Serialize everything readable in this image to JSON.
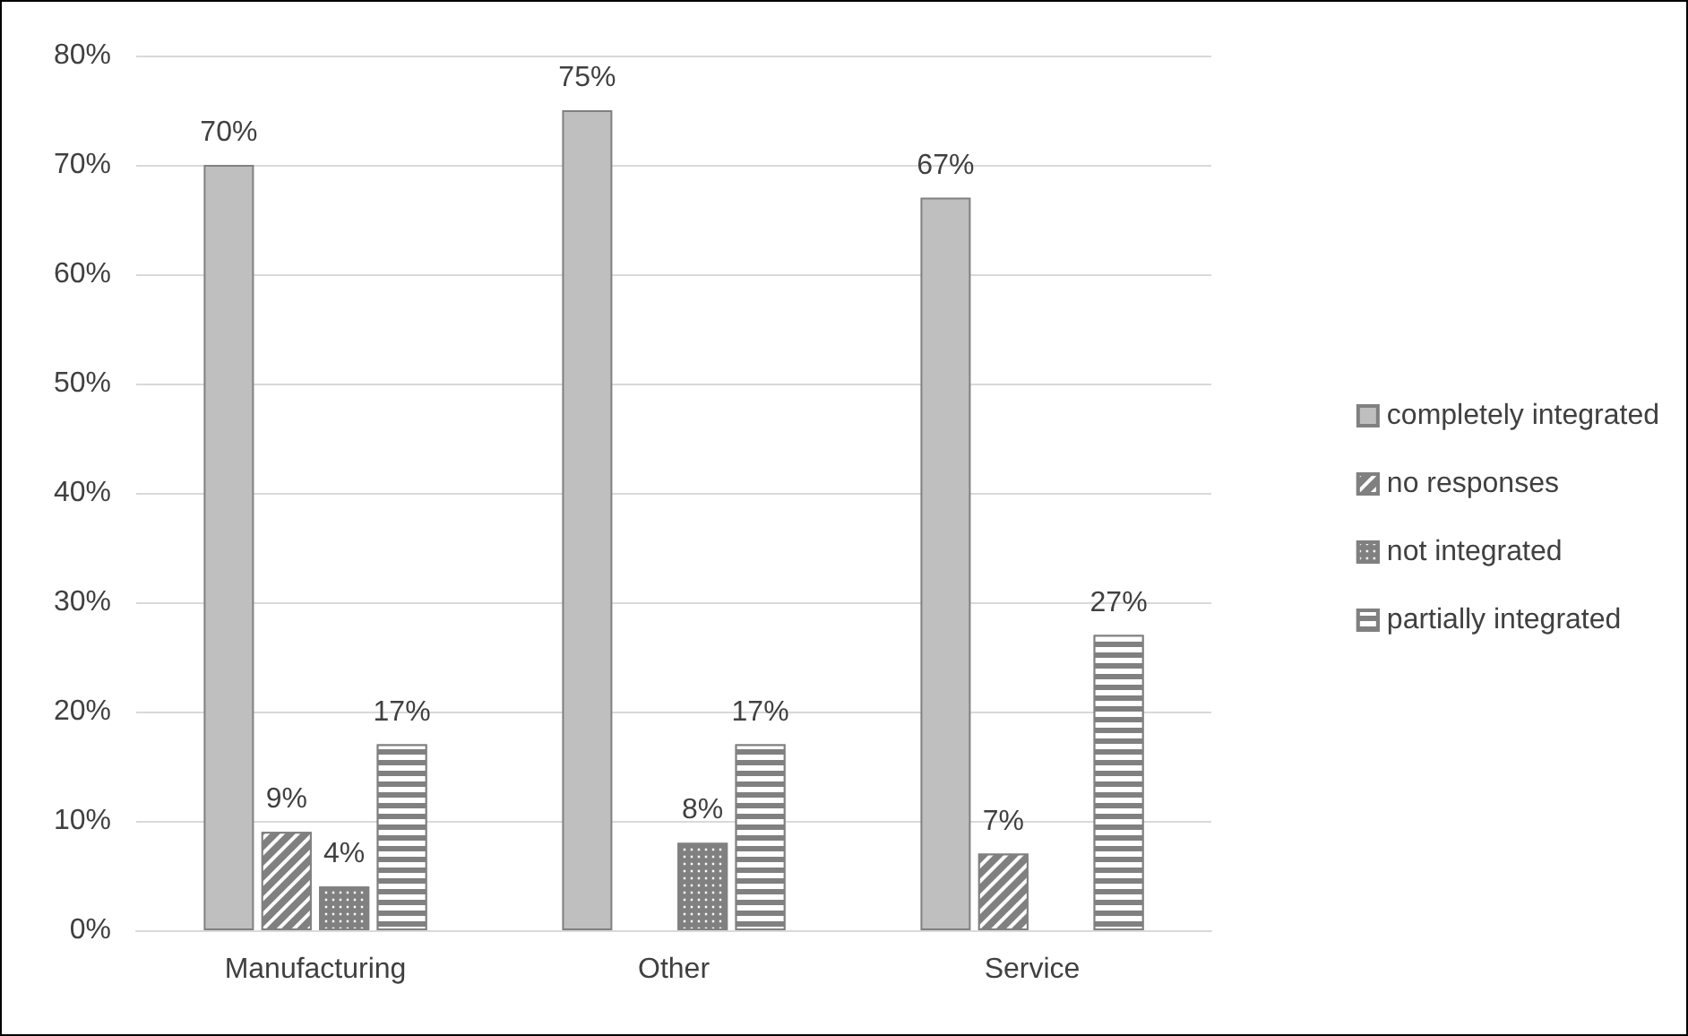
{
  "chart_data": {
    "type": "bar",
    "categories": [
      "Manufacturing",
      "Other",
      "Service"
    ],
    "series": [
      {
        "name": "completely integrated",
        "color": "#bfbfbf",
        "values": [
          70,
          75,
          67
        ],
        "value_labels": [
          "70%",
          "75%",
          "67%"
        ]
      },
      {
        "name": "no responses",
        "color": "#808080",
        "values": [
          9,
          null,
          7
        ],
        "value_labels": [
          "9%",
          null,
          "7%"
        ]
      },
      {
        "name": "not integrated",
        "color": "#808080",
        "values": [
          4,
          8,
          null
        ],
        "value_labels": [
          "4%",
          "8%",
          null
        ]
      },
      {
        "name": "partially integrated",
        "color": "#808080",
        "values": [
          17,
          17,
          27
        ],
        "value_labels": [
          "17%",
          "17%",
          "27%"
        ]
      }
    ],
    "ylim": [
      0,
      80
    ],
    "yticks": [
      {
        "value": 0,
        "label": "0%"
      },
      {
        "value": 10,
        "label": "10%"
      },
      {
        "value": 20,
        "label": "20%"
      },
      {
        "value": 30,
        "label": "30%"
      },
      {
        "value": 40,
        "label": "40%"
      },
      {
        "value": 50,
        "label": "50%"
      },
      {
        "value": 60,
        "label": "60%"
      },
      {
        "value": 70,
        "label": "70%"
      },
      {
        "value": 80,
        "label": "80%"
      }
    ],
    "grid": "y",
    "legend": "right"
  }
}
